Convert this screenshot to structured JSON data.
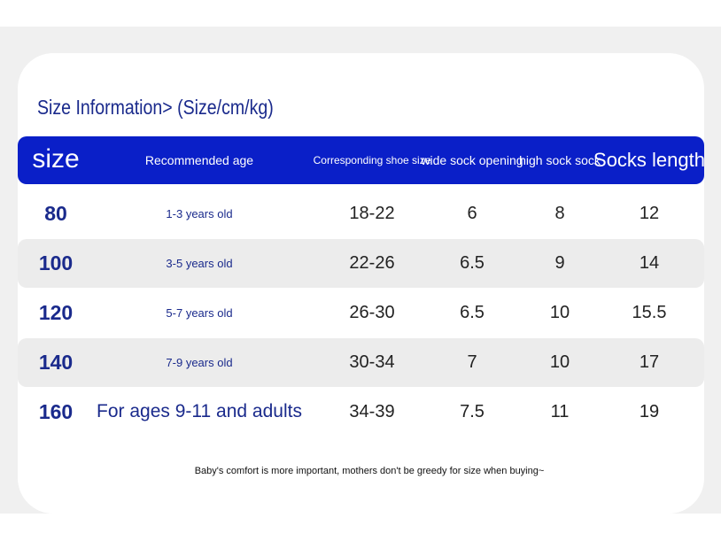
{
  "title": "Size Information> (Size/cm/kg)",
  "table": {
    "header": [
      "size",
      "Recommended age",
      "Corresponding shoe size",
      "wide sock opening",
      "high sock sock",
      "Socks length"
    ],
    "rows": [
      [
        "80",
        "1-3 years old",
        "18-22",
        "6",
        "8",
        "12"
      ],
      [
        "100",
        "3-5 years old",
        "22-26",
        "6.5",
        "9",
        "14"
      ],
      [
        "120",
        "5-7 years old",
        "26-30",
        "6.5",
        "10",
        "15.5"
      ],
      [
        "140",
        "7-9 years old",
        "30-34",
        "7",
        "10",
        "17"
      ],
      [
        "160",
        "For ages 9-11 and adults",
        "34-39",
        "7.5",
        "11",
        "19"
      ]
    ]
  },
  "footer": "Baby's comfort is more important, mothers don't be greedy for size when buying~"
}
